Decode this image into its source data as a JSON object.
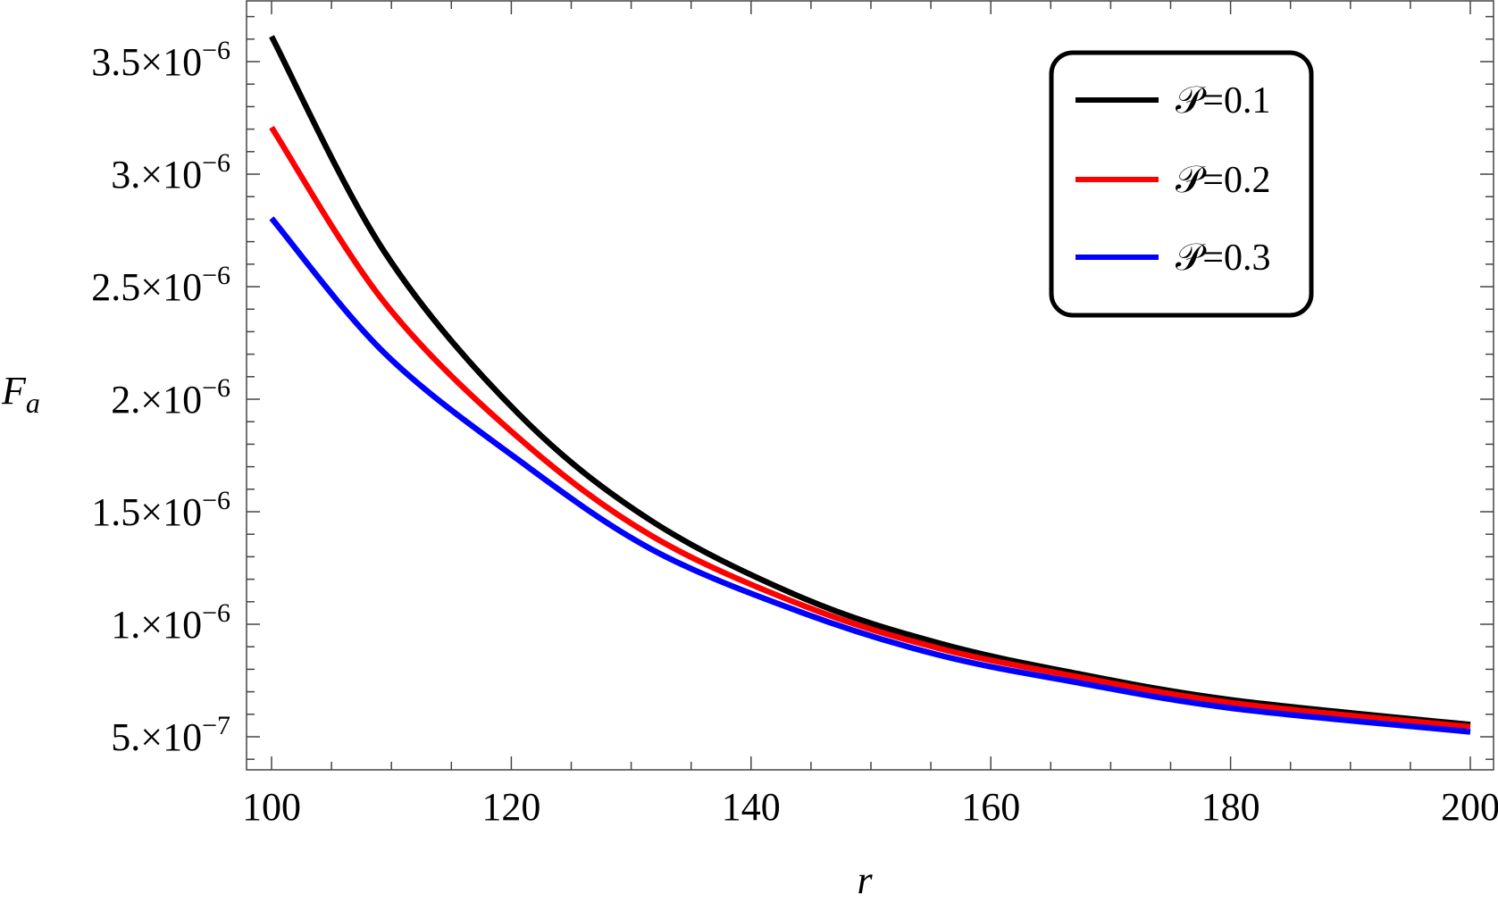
{
  "chart_data": {
    "type": "line",
    "title": "",
    "xlabel": "r",
    "ylabel": "F",
    "ylabel_subscript": "a",
    "xlim": [
      100,
      200
    ],
    "ylim": [
      4.3e-07,
      3.78e-06
    ],
    "grid": false,
    "legend_placement": "top-right",
    "x_ticks": [
      {
        "value": 100,
        "label": "100"
      },
      {
        "value": 120,
        "label": "120"
      },
      {
        "value": 140,
        "label": "140"
      },
      {
        "value": 160,
        "label": "160"
      },
      {
        "value": 180,
        "label": "180"
      },
      {
        "value": 200,
        "label": "200"
      }
    ],
    "y_ticks": [
      {
        "value": 3.5e-06,
        "mantissa": "3.5",
        "times": "×10",
        "exponent": "−6"
      },
      {
        "value": 3e-06,
        "mantissa": "3.",
        "times": "×10",
        "exponent": "−6"
      },
      {
        "value": 2.5e-06,
        "mantissa": "2.5",
        "times": "×10",
        "exponent": "−6"
      },
      {
        "value": 2e-06,
        "mantissa": "2.",
        "times": "×10",
        "exponent": "−6"
      },
      {
        "value": 1.5e-06,
        "mantissa": "1.5",
        "times": "×10",
        "exponent": "−6"
      },
      {
        "value": 1e-06,
        "mantissa": "1.",
        "times": "×10",
        "exponent": "−6"
      },
      {
        "value": 5e-07,
        "mantissa": "5.",
        "times": "×10",
        "exponent": "−7"
      }
    ],
    "x": [
      100,
      109.4,
      120.6,
      131.7,
      144.4,
      155.6,
      166.8,
      180.2,
      200
    ],
    "series": [
      {
        "name": "𝒫=0.1",
        "color": "#000000",
        "values": [
          3.612e-06,
          2.656e-06,
          1.935e-06,
          1.459e-06,
          1.115e-06,
          9.17e-07,
          7.85e-07,
          6.63e-07,
          5.54e-07
        ]
      },
      {
        "name": "𝒫=0.2",
        "color": "#ff0000",
        "values": [
          3.208e-06,
          2.431e-06,
          1.829e-06,
          1.393e-06,
          1.082e-06,
          8.94e-07,
          7.71e-07,
          6.5e-07,
          5.44e-07
        ]
      },
      {
        "name": "𝒫=0.3",
        "color": "#0000ff",
        "values": [
          2.804e-06,
          2.206e-06,
          1.73e-06,
          1.333e-06,
          1.049e-06,
          8.64e-07,
          7.45e-07,
          6.26e-07,
          5.22e-07
        ]
      }
    ]
  }
}
